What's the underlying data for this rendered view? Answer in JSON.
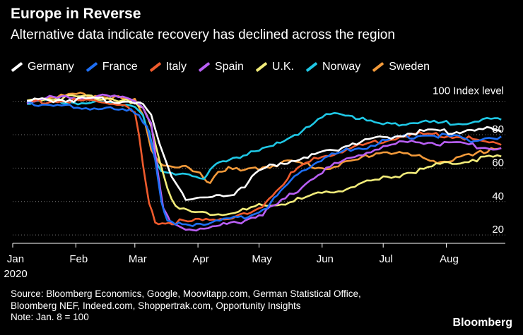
{
  "header": {
    "title": "Europe in Reverse",
    "subtitle": "Alternative data indicate recovery has declined across the region"
  },
  "footer": {
    "source_line1": "Source: Bloomberg Economics, Google, Moovitapp.com, German Statistical Office,",
    "source_line2": "Bloomberg NEF, Indeed.com, Shoppertrak.com, Opportunity Insights",
    "note": "Note: Jan. 8 = 100",
    "brand": "Bloomberg"
  },
  "chart_data": {
    "type": "line",
    "title": "Europe in Reverse",
    "subtitle": "Alternative data indicate recovery has declined across the region",
    "ylabel": "100 Index level",
    "xlabel": "",
    "ylim": [
      15,
      110
    ],
    "yticks": [
      20,
      40,
      60,
      80
    ],
    "year_label": "2020",
    "x_tick_labels": [
      "Jan",
      "Feb",
      "Mar",
      "Apr",
      "May",
      "Jun",
      "Jul",
      "Aug"
    ],
    "x_tick_days": [
      0,
      31,
      60,
      91,
      121,
      152,
      182,
      213
    ],
    "x_range_days": [
      0,
      242
    ],
    "legend_position": "top-left",
    "grid": "horizontal dotted",
    "series": [
      {
        "name": "Germany",
        "color": "#ffffff",
        "x": [
          7,
          20,
          40,
          60,
          64,
          68,
          72,
          78,
          85,
          92,
          100,
          107,
          114,
          121,
          128,
          135,
          145,
          152,
          160,
          167,
          175,
          182,
          190,
          200,
          210,
          218,
          225,
          235,
          240
        ],
        "y": [
          100,
          101,
          101,
          100,
          98,
          92,
          75,
          55,
          42,
          42,
          43,
          44,
          50,
          58,
          62,
          64,
          66,
          70,
          72,
          75,
          76,
          78,
          80,
          82,
          82,
          82,
          83,
          83,
          82
        ]
      },
      {
        "name": "France",
        "color": "#1e6ff5",
        "x": [
          7,
          20,
          40,
          58,
          62,
          66,
          70,
          73,
          76,
          80,
          85,
          92,
          100,
          107,
          114,
          121,
          125,
          130,
          135,
          140,
          148,
          155,
          162,
          170,
          178,
          185,
          195,
          205,
          215,
          225,
          232,
          240
        ],
        "y": [
          100,
          97,
          96,
          94,
          92,
          85,
          65,
          40,
          27,
          26,
          26,
          27,
          28,
          29,
          31,
          34,
          37,
          43,
          50,
          57,
          63,
          67,
          70,
          72,
          74,
          77,
          79,
          80,
          79,
          77,
          78,
          79
        ]
      },
      {
        "name": "Italy",
        "color": "#ef5b2d",
        "x": [
          7,
          20,
          40,
          55,
          60,
          62,
          64,
          67,
          70,
          75,
          80,
          88,
          95,
          102,
          110,
          117,
          121,
          126,
          131,
          135,
          140,
          150,
          160,
          170,
          180,
          190,
          200,
          210,
          220,
          230,
          240
        ],
        "y": [
          100,
          100,
          100,
          98,
          92,
          80,
          62,
          38,
          28,
          27,
          28,
          28,
          29,
          30,
          31,
          33,
          36,
          42,
          48,
          54,
          60,
          66,
          70,
          73,
          76,
          79,
          80,
          80,
          79,
          76,
          74
        ]
      },
      {
        "name": "Spain",
        "color": "#b95ff5",
        "x": [
          7,
          20,
          40,
          60,
          64,
          68,
          71,
          74,
          78,
          85,
          92,
          100,
          107,
          114,
          121,
          130,
          140,
          150,
          160,
          170,
          180,
          190,
          200,
          210,
          220,
          230,
          240
        ],
        "y": [
          100,
          102,
          103,
          101,
          97,
          87,
          60,
          35,
          26,
          24,
          24,
          25,
          27,
          29,
          32,
          38,
          47,
          57,
          63,
          68,
          72,
          75,
          76,
          75,
          74,
          73,
          72
        ]
      },
      {
        "name": "U.K.",
        "color": "#f2ec7a",
        "x": [
          7,
          20,
          35,
          50,
          60,
          64,
          68,
          72,
          76,
          80,
          86,
          95,
          105,
          115,
          121,
          130,
          140,
          150,
          160,
          170,
          180,
          190,
          200,
          210,
          220,
          230,
          240
        ],
        "y": [
          100,
          102,
          103,
          102,
          98,
          95,
          85,
          65,
          48,
          38,
          34,
          33,
          33,
          35,
          37,
          38,
          41,
          44,
          47,
          50,
          53,
          56,
          59,
          62,
          64,
          66,
          67
        ]
      },
      {
        "name": "Norway",
        "color": "#1fc8e6",
        "x": [
          7,
          20,
          40,
          60,
          64,
          67,
          70,
          73,
          76,
          80,
          85,
          90,
          94,
          97,
          100,
          105,
          110,
          115,
          121,
          128,
          135,
          142,
          148,
          152,
          158,
          165,
          172,
          180,
          188,
          195,
          205,
          215,
          225,
          235,
          240
        ],
        "y": [
          100,
          100,
          99,
          98,
          92,
          82,
          65,
          57,
          56,
          57,
          58,
          55,
          52,
          58,
          62,
          65,
          67,
          68,
          70,
          73,
          78,
          82,
          86,
          90,
          93,
          92,
          89,
          86,
          87,
          87,
          87,
          87,
          88,
          89,
          89
        ]
      },
      {
        "name": "Sweden",
        "color": "#f39a3a",
        "x": [
          7,
          20,
          35,
          50,
          60,
          64,
          68,
          72,
          76,
          80,
          85,
          92,
          97,
          101,
          106,
          112,
          121,
          128,
          135,
          145,
          152,
          160,
          168,
          175,
          182,
          190,
          198,
          205,
          212,
          220,
          228,
          235,
          240
        ],
        "y": [
          100,
          103,
          104,
          102,
          100,
          92,
          72,
          64,
          62,
          60,
          60,
          56,
          52,
          58,
          60,
          58,
          60,
          62,
          64,
          62,
          60,
          62,
          64,
          68,
          70,
          69,
          67,
          65,
          64,
          66,
          68,
          72,
          72
        ]
      }
    ]
  }
}
